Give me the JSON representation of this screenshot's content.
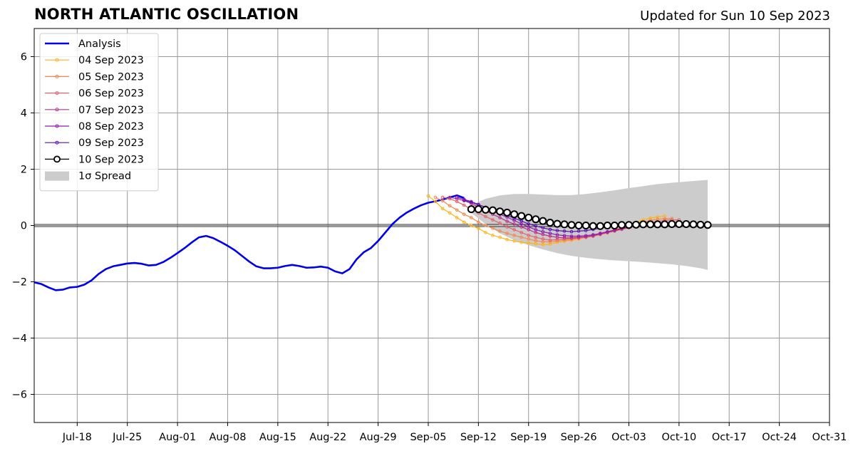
{
  "header": {
    "title": "NORTH ATLANTIC OSCILLATION",
    "updated": "Updated for Sun 10 Sep 2023"
  },
  "chart_data": {
    "type": "line",
    "title": "NORTH ATLANTIC OSCILLATION",
    "subtitle": "Updated for Sun 10 Sep 2023",
    "xlabel": "",
    "ylabel": "",
    "x_type": "date",
    "xlim": [
      "2023-07-12",
      "2023-10-31"
    ],
    "ylim": [
      -7,
      7
    ],
    "yticks": [
      -6,
      -4,
      -2,
      0,
      2,
      4,
      6
    ],
    "ytick_labels": [
      "−6",
      "−4",
      "−2",
      "0",
      "2",
      "4",
      "6"
    ],
    "xticks": [
      "2023-07-18",
      "2023-07-25",
      "2023-08-01",
      "2023-08-08",
      "2023-08-15",
      "2023-08-22",
      "2023-08-29",
      "2023-09-05",
      "2023-09-12",
      "2023-09-19",
      "2023-09-26",
      "2023-10-03",
      "2023-10-10",
      "2023-10-17",
      "2023-10-24",
      "2023-10-31"
    ],
    "xtick_labels": [
      "Jul-18",
      "Jul-25",
      "Aug-01",
      "Aug-08",
      "Aug-15",
      "Aug-22",
      "Aug-29",
      "Sep-05",
      "Sep-12",
      "Sep-19",
      "Sep-26",
      "Oct-03",
      "Oct-10",
      "Oct-17",
      "Oct-24",
      "Oct-31"
    ],
    "grid": true,
    "zero_line": true,
    "legend_position": "top-left",
    "series": [
      {
        "name": "Analysis",
        "color": "#0000ee",
        "marker": "none",
        "x": [
          "2023-07-12",
          "2023-07-13",
          "2023-07-14",
          "2023-07-15",
          "2023-07-16",
          "2023-07-17",
          "2023-07-18",
          "2023-07-19",
          "2023-07-20",
          "2023-07-21",
          "2023-07-22",
          "2023-07-23",
          "2023-07-24",
          "2023-07-25",
          "2023-07-26",
          "2023-07-27",
          "2023-07-28",
          "2023-07-29",
          "2023-07-30",
          "2023-07-31",
          "2023-08-01",
          "2023-08-02",
          "2023-08-03",
          "2023-08-04",
          "2023-08-05",
          "2023-08-06",
          "2023-08-07",
          "2023-08-08",
          "2023-08-09",
          "2023-08-10",
          "2023-08-11",
          "2023-08-12",
          "2023-08-13",
          "2023-08-14",
          "2023-08-15",
          "2023-08-16",
          "2023-08-17",
          "2023-08-18",
          "2023-08-19",
          "2023-08-20",
          "2023-08-21",
          "2023-08-22",
          "2023-08-23",
          "2023-08-24",
          "2023-08-25",
          "2023-08-26",
          "2023-08-27",
          "2023-08-28",
          "2023-08-29",
          "2023-08-30",
          "2023-08-31",
          "2023-09-01",
          "2023-09-02",
          "2023-09-03",
          "2023-09-04",
          "2023-09-05",
          "2023-09-06",
          "2023-09-07",
          "2023-09-08",
          "2023-09-09",
          "2023-09-10"
        ],
        "y": [
          -2.02,
          -2.08,
          -2.2,
          -2.3,
          -2.28,
          -2.2,
          -2.18,
          -2.1,
          -1.95,
          -1.72,
          -1.55,
          -1.45,
          -1.4,
          -1.35,
          -1.33,
          -1.36,
          -1.42,
          -1.4,
          -1.3,
          -1.15,
          -0.98,
          -0.8,
          -0.6,
          -0.42,
          -0.37,
          -0.45,
          -0.58,
          -0.72,
          -0.88,
          -1.08,
          -1.28,
          -1.45,
          -1.52,
          -1.52,
          -1.5,
          -1.44,
          -1.4,
          -1.44,
          -1.5,
          -1.49,
          -1.46,
          -1.5,
          -1.63,
          -1.7,
          -1.55,
          -1.2,
          -0.95,
          -0.8,
          -0.55,
          -0.25,
          0.05,
          0.28,
          0.46,
          0.6,
          0.72,
          0.81,
          0.86,
          0.92,
          1.0,
          1.07,
          0.98
        ]
      },
      {
        "name": "04 Sep 2023",
        "color": "#ffb31a",
        "marker": "small-circle",
        "x": [
          "2023-09-05",
          "2023-09-06",
          "2023-09-07",
          "2023-09-08",
          "2023-09-09",
          "2023-09-10",
          "2023-09-11",
          "2023-09-12",
          "2023-09-13",
          "2023-09-14",
          "2023-09-15",
          "2023-09-16",
          "2023-09-17",
          "2023-09-18",
          "2023-09-19",
          "2023-09-20",
          "2023-09-21",
          "2023-09-22",
          "2023-09-23",
          "2023-09-24",
          "2023-09-25",
          "2023-09-26",
          "2023-09-27",
          "2023-09-28",
          "2023-09-29",
          "2023-09-30",
          "2023-10-01",
          "2023-10-02",
          "2023-10-03",
          "2023-10-04",
          "2023-10-05",
          "2023-10-06",
          "2023-10-07",
          "2023-10-08"
        ],
        "y": [
          1.05,
          0.85,
          0.6,
          0.45,
          0.28,
          0.12,
          0.0,
          -0.1,
          -0.25,
          -0.35,
          -0.42,
          -0.5,
          -0.55,
          -0.6,
          -0.62,
          -0.65,
          -0.68,
          -0.66,
          -0.6,
          -0.56,
          -0.52,
          -0.48,
          -0.42,
          -0.36,
          -0.3,
          -0.24,
          -0.15,
          -0.05,
          0.05,
          0.12,
          0.2,
          0.26,
          0.3,
          0.33
        ]
      },
      {
        "name": "05 Sep 2023",
        "color": "#f4884a",
        "marker": "small-circle",
        "x": [
          "2023-09-06",
          "2023-09-07",
          "2023-09-08",
          "2023-09-09",
          "2023-09-10",
          "2023-09-11",
          "2023-09-12",
          "2023-09-13",
          "2023-09-14",
          "2023-09-15",
          "2023-09-16",
          "2023-09-17",
          "2023-09-18",
          "2023-09-19",
          "2023-09-20",
          "2023-09-21",
          "2023-09-22",
          "2023-09-23",
          "2023-09-24",
          "2023-09-25",
          "2023-09-26",
          "2023-09-27",
          "2023-09-28",
          "2023-09-29",
          "2023-09-30",
          "2023-10-01",
          "2023-10-02",
          "2023-10-03",
          "2023-10-04",
          "2023-10-05",
          "2023-10-06",
          "2023-10-07",
          "2023-10-08",
          "2023-10-09"
        ],
        "y": [
          1.0,
          0.88,
          0.7,
          0.55,
          0.4,
          0.28,
          0.12,
          0.0,
          -0.1,
          -0.2,
          -0.28,
          -0.35,
          -0.42,
          -0.48,
          -0.54,
          -0.58,
          -0.58,
          -0.55,
          -0.52,
          -0.5,
          -0.46,
          -0.42,
          -0.38,
          -0.32,
          -0.25,
          -0.18,
          -0.1,
          -0.02,
          0.06,
          0.12,
          0.18,
          0.22,
          0.24,
          0.25
        ]
      },
      {
        "name": "06 Sep 2023",
        "color": "#e4626c",
        "marker": "small-circle",
        "x": [
          "2023-09-07",
          "2023-09-08",
          "2023-09-09",
          "2023-09-10",
          "2023-09-11",
          "2023-09-12",
          "2023-09-13",
          "2023-09-14",
          "2023-09-15",
          "2023-09-16",
          "2023-09-17",
          "2023-09-18",
          "2023-09-19",
          "2023-09-20",
          "2023-09-21",
          "2023-09-22",
          "2023-09-23",
          "2023-09-24",
          "2023-09-25",
          "2023-09-26",
          "2023-09-27",
          "2023-09-28",
          "2023-09-29",
          "2023-09-30",
          "2023-10-01",
          "2023-10-02",
          "2023-10-03",
          "2023-10-04",
          "2023-10-05",
          "2023-10-06",
          "2023-10-07",
          "2023-10-08",
          "2023-10-09",
          "2023-10-10"
        ],
        "y": [
          1.0,
          0.95,
          0.85,
          0.72,
          0.58,
          0.45,
          0.32,
          0.2,
          0.08,
          -0.05,
          -0.15,
          -0.25,
          -0.35,
          -0.42,
          -0.48,
          -0.52,
          -0.5,
          -0.48,
          -0.46,
          -0.44,
          -0.42,
          -0.38,
          -0.32,
          -0.26,
          -0.2,
          -0.14,
          -0.08,
          -0.02,
          0.04,
          0.1,
          0.14,
          0.18,
          0.2,
          0.2
        ]
      },
      {
        "name": "07 Sep 2023",
        "color": "#b93289",
        "marker": "small-circle",
        "x": [
          "2023-09-08",
          "2023-09-09",
          "2023-09-10",
          "2023-09-11",
          "2023-09-12",
          "2023-09-13",
          "2023-09-14",
          "2023-09-15",
          "2023-09-16",
          "2023-09-17",
          "2023-09-18",
          "2023-09-19",
          "2023-09-20",
          "2023-09-21",
          "2023-09-22",
          "2023-09-23",
          "2023-09-24",
          "2023-09-25",
          "2023-09-26",
          "2023-09-27",
          "2023-09-28",
          "2023-09-29",
          "2023-09-30",
          "2023-10-01",
          "2023-10-02",
          "2023-10-03",
          "2023-10-04",
          "2023-10-05",
          "2023-10-06",
          "2023-10-07",
          "2023-10-08",
          "2023-10-09",
          "2023-10-10",
          "2023-10-11"
        ],
        "y": [
          1.0,
          0.95,
          0.88,
          0.78,
          0.66,
          0.52,
          0.4,
          0.28,
          0.15,
          0.05,
          -0.05,
          -0.15,
          -0.25,
          -0.32,
          -0.38,
          -0.42,
          -0.44,
          -0.44,
          -0.42,
          -0.4,
          -0.36,
          -0.3,
          -0.24,
          -0.18,
          -0.12,
          -0.06,
          0.0,
          0.05,
          0.08,
          0.1,
          0.11,
          0.1,
          0.1,
          0.1
        ]
      },
      {
        "name": "08 Sep 2023",
        "color": "#8d1aa8",
        "marker": "small-circle",
        "x": [
          "2023-09-09",
          "2023-09-10",
          "2023-09-11",
          "2023-09-12",
          "2023-09-13",
          "2023-09-14",
          "2023-09-15",
          "2023-09-16",
          "2023-09-17",
          "2023-09-18",
          "2023-09-19",
          "2023-09-20",
          "2023-09-21",
          "2023-09-22",
          "2023-09-23",
          "2023-09-24",
          "2023-09-25",
          "2023-09-26",
          "2023-09-27",
          "2023-09-28",
          "2023-09-29",
          "2023-09-30",
          "2023-10-01",
          "2023-10-02",
          "2023-10-03",
          "2023-10-04",
          "2023-10-05",
          "2023-10-06",
          "2023-10-07",
          "2023-10-08",
          "2023-10-09",
          "2023-10-10",
          "2023-10-11",
          "2023-10-12"
        ],
        "y": [
          1.0,
          0.93,
          0.85,
          0.75,
          0.64,
          0.52,
          0.4,
          0.3,
          0.18,
          0.06,
          -0.05,
          -0.15,
          -0.22,
          -0.28,
          -0.33,
          -0.36,
          -0.38,
          -0.38,
          -0.36,
          -0.33,
          -0.28,
          -0.22,
          -0.16,
          -0.1,
          -0.05,
          0.0,
          0.04,
          0.07,
          0.09,
          0.1,
          0.1,
          0.1,
          0.1,
          0.1
        ]
      },
      {
        "name": "09 Sep 2023",
        "color": "#5a0fb0",
        "marker": "small-circle",
        "x": [
          "2023-09-10",
          "2023-09-11",
          "2023-09-12",
          "2023-09-13",
          "2023-09-14",
          "2023-09-15",
          "2023-09-16",
          "2023-09-17",
          "2023-09-18",
          "2023-09-19",
          "2023-09-20",
          "2023-09-21",
          "2023-09-22",
          "2023-09-23",
          "2023-09-24",
          "2023-09-25",
          "2023-09-26",
          "2023-09-27",
          "2023-09-28",
          "2023-09-29",
          "2023-09-30",
          "2023-10-01",
          "2023-10-02",
          "2023-10-03",
          "2023-10-04",
          "2023-10-05",
          "2023-10-06",
          "2023-10-07",
          "2023-10-08",
          "2023-10-09",
          "2023-10-10",
          "2023-10-11",
          "2023-10-12",
          "2023-10-13"
        ],
        "y": [
          0.9,
          0.82,
          0.74,
          0.65,
          0.56,
          0.46,
          0.36,
          0.26,
          0.16,
          0.06,
          -0.02,
          -0.08,
          -0.14,
          -0.18,
          -0.2,
          -0.22,
          -0.2,
          -0.18,
          -0.14,
          -0.1,
          -0.06,
          -0.02,
          0.02,
          0.05,
          0.07,
          0.09,
          0.1,
          0.1,
          0.1,
          0.1,
          0.1,
          0.1,
          0.09,
          0.08
        ]
      },
      {
        "name": "10 Sep 2023",
        "color": "#000000",
        "marker": "open-circle",
        "x": [
          "2023-09-11",
          "2023-09-12",
          "2023-09-13",
          "2023-09-14",
          "2023-09-15",
          "2023-09-16",
          "2023-09-17",
          "2023-09-18",
          "2023-09-19",
          "2023-09-20",
          "2023-09-21",
          "2023-09-22",
          "2023-09-23",
          "2023-09-24",
          "2023-09-25",
          "2023-09-26",
          "2023-09-27",
          "2023-09-28",
          "2023-09-29",
          "2023-09-30",
          "2023-10-01",
          "2023-10-02",
          "2023-10-03",
          "2023-10-04",
          "2023-10-05",
          "2023-10-06",
          "2023-10-07",
          "2023-10-08",
          "2023-10-09",
          "2023-10-10",
          "2023-10-11",
          "2023-10-12",
          "2023-10-13",
          "2023-10-14"
        ],
        "y": [
          0.58,
          0.58,
          0.56,
          0.54,
          0.5,
          0.46,
          0.4,
          0.34,
          0.28,
          0.22,
          0.16,
          0.1,
          0.06,
          0.04,
          0.02,
          0.0,
          0.0,
          -0.02,
          -0.02,
          0.0,
          0.0,
          0.02,
          0.02,
          0.03,
          0.04,
          0.04,
          0.04,
          0.04,
          0.05,
          0.05,
          0.05,
          0.04,
          0.03,
          0.02
        ]
      }
    ],
    "spread": {
      "name": "1σ Spread",
      "color": "#cccccc",
      "x": [
        "2023-09-11",
        "2023-09-13",
        "2023-09-15",
        "2023-09-17",
        "2023-09-19",
        "2023-09-21",
        "2023-09-23",
        "2023-09-25",
        "2023-09-27",
        "2023-09-29",
        "2023-10-01",
        "2023-10-03",
        "2023-10-05",
        "2023-10-07",
        "2023-10-09",
        "2023-10-11",
        "2023-10-13",
        "2023-10-14"
      ],
      "upper": [
        0.72,
        0.95,
        1.07,
        1.12,
        1.12,
        1.1,
        1.08,
        1.08,
        1.12,
        1.18,
        1.25,
        1.33,
        1.4,
        1.47,
        1.52,
        1.56,
        1.6,
        1.62
      ],
      "lower": [
        0.45,
        0.05,
        -0.28,
        -0.52,
        -0.7,
        -0.85,
        -0.98,
        -1.08,
        -1.15,
        -1.2,
        -1.24,
        -1.27,
        -1.3,
        -1.34,
        -1.38,
        -1.44,
        -1.52,
        -1.58
      ]
    }
  }
}
